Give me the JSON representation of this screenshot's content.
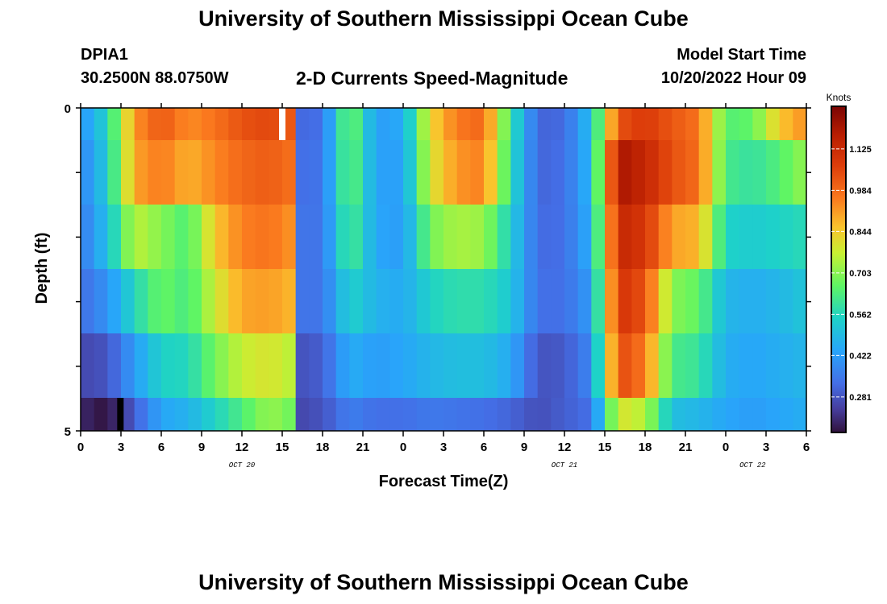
{
  "header": {
    "title": "University of Southern Mississippi Ocean Cube",
    "station_id": "DPIA1",
    "station_coords": "30.2500N  88.0750W",
    "plot_title": "2-D Currents Speed-Magnitude",
    "model_start_label": "Model Start Time",
    "model_start_value": "10/20/2022 Hour 09"
  },
  "footer": {
    "title": "University of Southern Mississippi Ocean Cube"
  },
  "chart_data": {
    "type": "heatmap",
    "title": "2-D Currents Speed-Magnitude",
    "xlabel": "Forecast Time(Z)",
    "ylabel": "Depth (ft)",
    "x_hours": [
      0,
      54
    ],
    "x_tick_labels": [
      "0",
      "3",
      "6",
      "9",
      "12",
      "15",
      "18",
      "21",
      "0",
      "3",
      "6",
      "9",
      "12",
      "15",
      "18",
      "21",
      "0",
      "3",
      "6"
    ],
    "date_labels": [
      {
        "label": "OCT 20",
        "hour": 12
      },
      {
        "label": "OCT 21",
        "hour": 36
      },
      {
        "label": "OCT 22",
        "hour": 50
      }
    ],
    "y_tick_labels": [
      "0",
      "5"
    ],
    "ylim": [
      0,
      5
    ],
    "colorbar": {
      "label": "Knots",
      "ticks": [
        "1.125",
        "0.984",
        "0.844",
        "0.703",
        "0.562",
        "0.422",
        "0.281"
      ],
      "min": 0.16,
      "max": 1.27
    },
    "anchors_by_hour": [
      0,
      2,
      4,
      6,
      8,
      10,
      12,
      14,
      15.5,
      16.5,
      18,
      20,
      22,
      24,
      26,
      28,
      30,
      32,
      34,
      36,
      38,
      40,
      42,
      44,
      46,
      48,
      50,
      52,
      54
    ],
    "rows": [
      {
        "depth_layer": "0-1 ft",
        "values": [
          0.4,
          0.55,
          0.92,
          1.02,
          0.93,
          0.97,
          1.03,
          1.05,
          1.02,
          0.32,
          0.33,
          0.7,
          0.42,
          0.45,
          0.82,
          0.96,
          0.99,
          0.6,
          0.31,
          0.32,
          0.5,
          1.03,
          1.08,
          1.02,
          0.97,
          0.64,
          0.66,
          0.85,
          0.93
        ]
      },
      {
        "depth_layer": "1-2 ft",
        "values": [
          0.37,
          0.53,
          0.9,
          0.96,
          0.88,
          0.94,
          0.99,
          1.01,
          0.98,
          0.33,
          0.34,
          0.68,
          0.43,
          0.43,
          0.79,
          0.92,
          0.95,
          0.58,
          0.31,
          0.33,
          0.48,
          1.2,
          1.14,
          1.03,
          0.98,
          0.62,
          0.59,
          0.64,
          0.72
        ]
      },
      {
        "depth_layer": "2-3 ft",
        "values": [
          0.35,
          0.5,
          0.76,
          0.7,
          0.63,
          0.85,
          0.95,
          0.97,
          0.93,
          0.34,
          0.34,
          0.64,
          0.44,
          0.42,
          0.68,
          0.74,
          0.72,
          0.54,
          0.32,
          0.33,
          0.46,
          1.14,
          1.09,
          0.9,
          0.88,
          0.55,
          0.53,
          0.55,
          0.57
        ]
      },
      {
        "depth_layer": "3-4 ft",
        "values": [
          0.33,
          0.4,
          0.56,
          0.67,
          0.62,
          0.78,
          0.9,
          0.91,
          0.88,
          0.34,
          0.34,
          0.55,
          0.47,
          0.45,
          0.55,
          0.58,
          0.58,
          0.52,
          0.33,
          0.33,
          0.42,
          1.1,
          1.03,
          0.7,
          0.66,
          0.48,
          0.46,
          0.48,
          0.52
        ]
      },
      {
        "depth_layer": "4-5 ft",
        "values": [
          0.26,
          0.28,
          0.42,
          0.55,
          0.56,
          0.68,
          0.77,
          0.8,
          0.76,
          0.28,
          0.3,
          0.46,
          0.42,
          0.44,
          0.48,
          0.5,
          0.5,
          0.45,
          0.28,
          0.29,
          0.38,
          1.05,
          0.96,
          0.62,
          0.6,
          0.46,
          0.44,
          0.46,
          0.48
        ]
      },
      {
        "depth_layer": "5 ft",
        "values": [
          0.2,
          0.16,
          0.3,
          0.44,
          0.47,
          0.55,
          0.63,
          0.72,
          0.68,
          0.26,
          0.28,
          0.36,
          0.33,
          0.33,
          0.35,
          0.34,
          0.33,
          0.31,
          0.27,
          0.3,
          0.33,
          0.8,
          0.75,
          0.5,
          0.48,
          0.44,
          0.42,
          0.44,
          0.46
        ]
      }
    ],
    "missing_cells": [
      {
        "hour": 15,
        "row": 0
      }
    ],
    "min_cells": [
      {
        "hour": 2,
        "row": 5
      }
    ]
  }
}
